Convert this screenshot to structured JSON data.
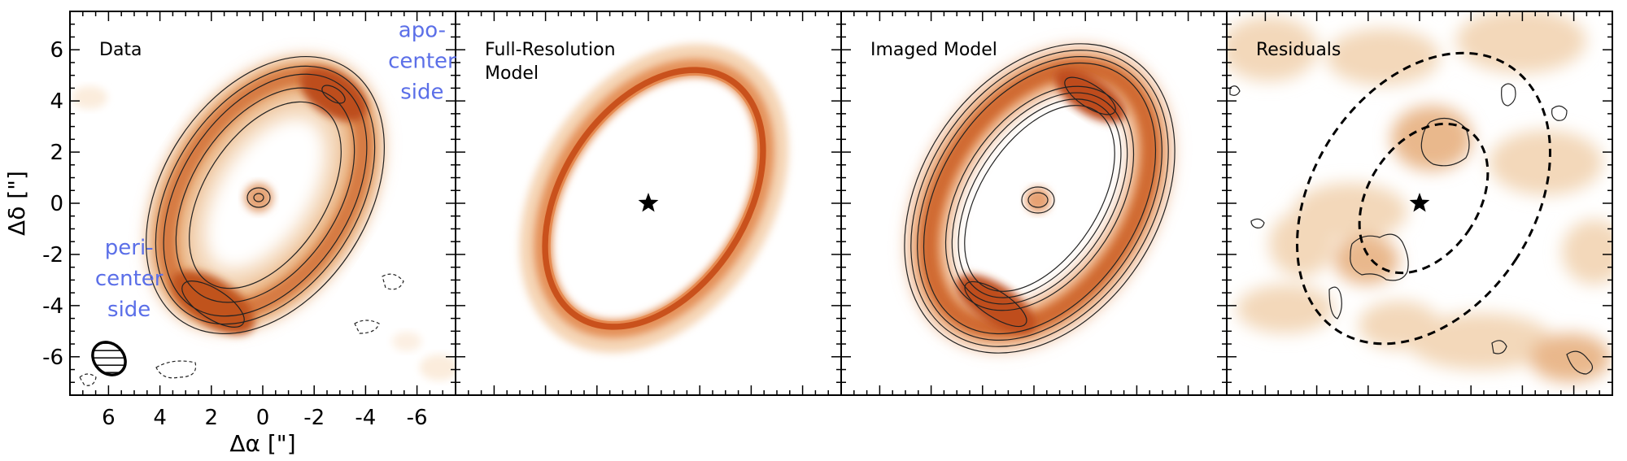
{
  "chart_data": {
    "type": "heatmap",
    "panels": [
      {
        "title_lines": [
          "Data"
        ],
        "content": "data"
      },
      {
        "title_lines": [
          "Full-Resolution",
          "Model"
        ],
        "content": "model"
      },
      {
        "title_lines": [
          "Imaged Model"
        ],
        "content": "imaged"
      },
      {
        "title_lines": [
          "Residuals"
        ],
        "content": "residuals"
      }
    ],
    "xlabel": "Δα [\"]",
    "ylabel": "Δδ [\"]",
    "xlim": [
      7.5,
      -7.5
    ],
    "ylim": [
      -7.5,
      7.5
    ],
    "x_ticks": [
      6,
      4,
      2,
      0,
      -2,
      -4,
      -6
    ],
    "y_ticks": [
      6,
      4,
      2,
      0,
      -2,
      -4,
      -6
    ],
    "annotations": [
      {
        "lines": [
          "apo-",
          "center",
          "side"
        ],
        "x": -6.2,
        "y": 6.5,
        "color": "#5b6fe8"
      },
      {
        "lines": [
          "peri-",
          "center",
          "side"
        ],
        "x": 5.2,
        "y": -2.0,
        "color": "#5b6fe8"
      }
    ],
    "star_position": [
      0,
      0
    ],
    "ring": {
      "center": [
        0.3,
        0.2
      ],
      "semi_major": 5.0,
      "semi_minor": 3.2,
      "pa_deg": 33
    },
    "beam": {
      "center": [
        6.0,
        -6.0
      ],
      "major": 1.6,
      "minor": 1.3,
      "pa_deg": 45
    },
    "colormap": [
      "#ffffff",
      "#f8e4cf",
      "#eaa46c",
      "#cf5a22",
      "#7a2e12"
    ]
  }
}
